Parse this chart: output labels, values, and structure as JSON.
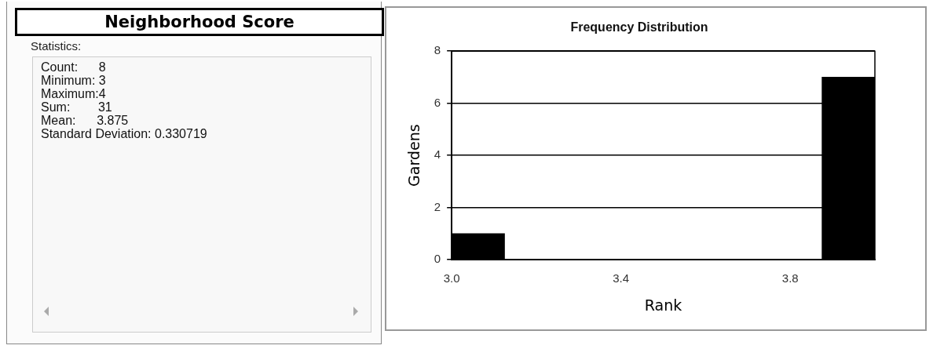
{
  "chart_data": [
    {
      "type": "other",
      "title": "Neighborhood Score",
      "subtitle": "Statistics:",
      "annotations": [
        "Count:      8",
        "Minimum: 3",
        "Maximum:4",
        "Sum:        31",
        "Mean:      3.875",
        "Standard Deviation: 0.330719"
      ]
    },
    {
      "type": "histogram",
      "title": "Frequency Distribution",
      "xlabel": "Rank",
      "ylabel": "Gardens",
      "bins": [
        3,
        3.125,
        3.25,
        3.375,
        3.5,
        3.625,
        3.75,
        3.875,
        4
      ],
      "values": [
        1,
        0,
        0,
        0,
        0,
        0,
        0,
        7
      ],
      "color": "#000000",
      "xlim": [
        3,
        4
      ],
      "xticks": [
        {
          "value": 3,
          "label": "3.0"
        },
        3.4,
        3.8
      ],
      "ylim": [
        0,
        8
      ],
      "yticks": [
        0,
        2,
        4,
        6,
        8
      ],
      "grid": "y",
      "legend": false
    }
  ]
}
